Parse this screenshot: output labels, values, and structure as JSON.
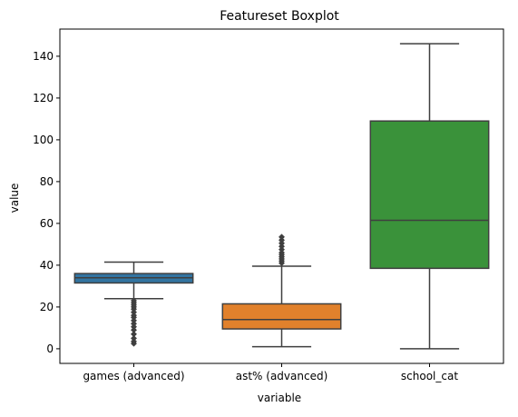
{
  "chart_data": {
    "type": "box",
    "title": "Featureset Boxplot",
    "xlabel": "variable",
    "ylabel": "value",
    "ylim": [
      -7,
      153
    ],
    "yticks": [
      0,
      20,
      40,
      60,
      80,
      100,
      120,
      140
    ],
    "ytick_labels": [
      "0",
      "20",
      "40",
      "60",
      "80",
      "100",
      "120",
      "140"
    ],
    "grid": false,
    "legend": "none",
    "categories": [
      "games (advanced)",
      "ast% (advanced)",
      "school_cat"
    ],
    "boxes": [
      {
        "category": "games (advanced)",
        "color": "#3274a1",
        "whisker_low": 24,
        "q1": 31.5,
        "median": 34,
        "q3": 36,
        "whisker_high": 41.5,
        "outliers": [
          2.5,
          3.5,
          5,
          7,
          9,
          10.5,
          12,
          13.5,
          15,
          16,
          17.5,
          19,
          20,
          21,
          22,
          23
        ]
      },
      {
        "category": "ast% (advanced)",
        "color": "#e1812c",
        "whisker_low": 1,
        "q1": 9.5,
        "median": 14,
        "q3": 21.5,
        "whisker_high": 39.5,
        "outliers": [
          41,
          42,
          43,
          44,
          45,
          46,
          47.5,
          49,
          50.5,
          52,
          53.5
        ]
      },
      {
        "category": "school_cat",
        "color": "#3a923a",
        "whisker_low": 0,
        "q1": 38.5,
        "median": 61.5,
        "q3": 109,
        "whisker_high": 146,
        "outliers": []
      }
    ]
  }
}
